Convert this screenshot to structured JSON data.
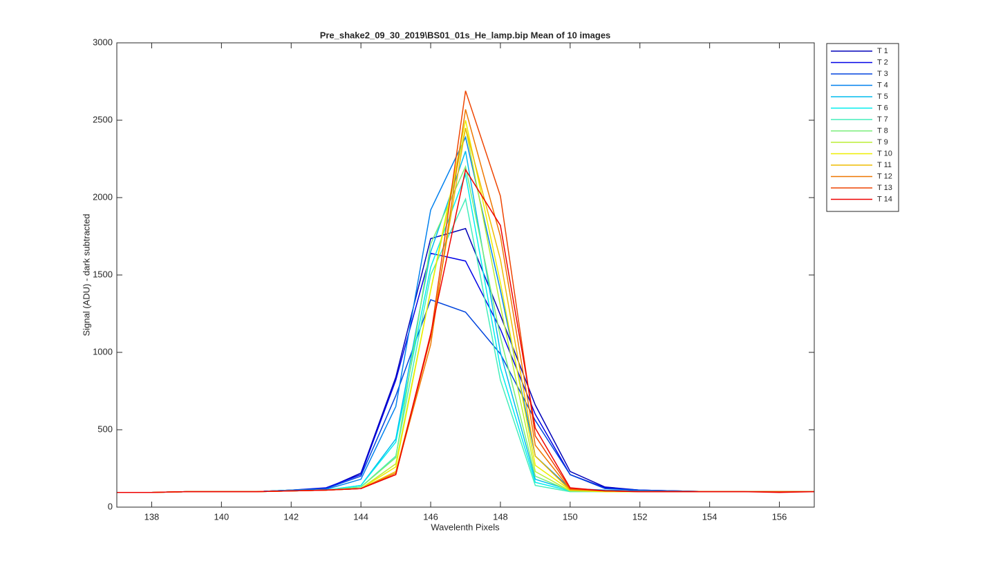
{
  "chart_data": {
    "type": "line",
    "title": "Pre_shake2_09_30_2019\\BS01_01s_He_lamp.bip  Mean of 10 images",
    "x_label": "Wavelenth Pixels",
    "y_label": "Signal (ADU) - dark subtracted",
    "x": [
      137,
      138,
      139,
      140,
      141,
      142,
      143,
      144,
      145,
      146,
      147,
      148,
      149,
      150,
      151,
      152,
      153,
      154,
      155,
      156,
      157
    ],
    "xlim": [
      137,
      157
    ],
    "xticks": [
      138,
      140,
      142,
      144,
      146,
      148,
      150,
      152,
      154,
      156
    ],
    "ylim": [
      0,
      3000
    ],
    "yticks": [
      0,
      500,
      1000,
      1500,
      2000,
      2500,
      3000
    ],
    "grid": false,
    "legend": "northeastoutside",
    "series": [
      {
        "name": "T 1",
        "color": "#0000b8",
        "values": [
          95,
          95,
          100,
          100,
          100,
          110,
          120,
          220,
          840,
          1735,
          1800,
          1240,
          660,
          230,
          130,
          110,
          105,
          100,
          100,
          100,
          100
        ]
      },
      {
        "name": "T 2",
        "color": "#0000e6",
        "values": [
          95,
          95,
          100,
          100,
          100,
          110,
          125,
          210,
          820,
          1640,
          1590,
          1150,
          600,
          210,
          125,
          110,
          105,
          100,
          100,
          100,
          100
        ]
      },
      {
        "name": "T 3",
        "color": "#0044dd",
        "values": [
          95,
          95,
          100,
          100,
          100,
          110,
          120,
          200,
          720,
          1340,
          1260,
          990,
          560,
          210,
          120,
          110,
          105,
          100,
          100,
          100,
          100
        ]
      },
      {
        "name": "T 4",
        "color": "#0080ee",
        "values": [
          95,
          95,
          100,
          100,
          100,
          110,
          115,
          180,
          650,
          1920,
          2390,
          1400,
          330,
          120,
          110,
          105,
          100,
          100,
          100,
          100,
          100
        ]
      },
      {
        "name": "T 5",
        "color": "#00bbee",
        "values": [
          95,
          95,
          100,
          100,
          100,
          105,
          110,
          140,
          440,
          1650,
          2300,
          1000,
          180,
          110,
          105,
          100,
          100,
          100,
          100,
          100,
          100
        ]
      },
      {
        "name": "T 6",
        "color": "#00eeee",
        "values": [
          95,
          95,
          100,
          100,
          100,
          105,
          110,
          140,
          420,
          1550,
          2150,
          900,
          160,
          105,
          105,
          100,
          100,
          100,
          100,
          100,
          100
        ]
      },
      {
        "name": "T 7",
        "color": "#44eebb",
        "values": [
          95,
          95,
          100,
          100,
          100,
          105,
          110,
          130,
          330,
          1500,
          1990,
          820,
          140,
          100,
          100,
          100,
          100,
          100,
          100,
          100,
          100
        ]
      },
      {
        "name": "T 8",
        "color": "#77ee77",
        "values": [
          95,
          95,
          100,
          100,
          100,
          105,
          110,
          130,
          320,
          1700,
          2200,
          1100,
          200,
          105,
          100,
          100,
          100,
          100,
          100,
          100,
          100
        ]
      },
      {
        "name": "T 9",
        "color": "#bbee33",
        "values": [
          95,
          95,
          100,
          100,
          100,
          105,
          110,
          120,
          280,
          1400,
          2450,
          1300,
          230,
          105,
          100,
          100,
          100,
          100,
          100,
          100,
          100
        ]
      },
      {
        "name": "T 10",
        "color": "#eeee00",
        "values": [
          95,
          95,
          100,
          100,
          100,
          105,
          110,
          120,
          260,
          1400,
          2500,
          1450,
          270,
          110,
          100,
          100,
          100,
          100,
          100,
          100,
          100
        ]
      },
      {
        "name": "T 11",
        "color": "#eebb00",
        "values": [
          95,
          95,
          100,
          100,
          100,
          105,
          110,
          120,
          230,
          1100,
          2450,
          1600,
          330,
          110,
          105,
          100,
          100,
          100,
          100,
          100,
          100
        ]
      },
      {
        "name": "T 12",
        "color": "#ee7700",
        "values": [
          95,
          95,
          100,
          100,
          100,
          105,
          110,
          120,
          220,
          1050,
          2570,
          1750,
          400,
          115,
          105,
          100,
          100,
          100,
          100,
          100,
          100
        ]
      },
      {
        "name": "T 13",
        "color": "#ee4400",
        "values": [
          95,
          95,
          100,
          100,
          100,
          105,
          110,
          120,
          210,
          1100,
          2690,
          2010,
          460,
          120,
          105,
          100,
          100,
          100,
          100,
          100,
          100
        ]
      },
      {
        "name": "T 14",
        "color": "#ee0000",
        "values": [
          95,
          95,
          100,
          100,
          100,
          105,
          110,
          120,
          210,
          1120,
          2180,
          1820,
          510,
          125,
          105,
          100,
          100,
          100,
          100,
          95,
          100
        ]
      }
    ]
  }
}
